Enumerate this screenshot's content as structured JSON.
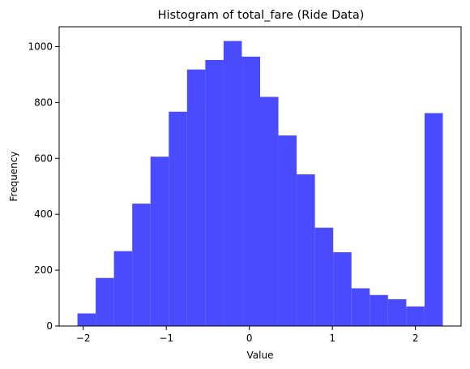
{
  "chart_data": {
    "type": "bar",
    "title": "Histogram of total_fare (Ride Data)",
    "xlabel": "Value",
    "ylabel": "Frequency",
    "bar_color": "#4a4aff",
    "bins": [
      {
        "start": -2.07,
        "end": -1.85,
        "count": 45
      },
      {
        "start": -1.85,
        "end": -1.63,
        "count": 172
      },
      {
        "start": -1.63,
        "end": -1.41,
        "count": 268
      },
      {
        "start": -1.41,
        "end": -1.19,
        "count": 438
      },
      {
        "start": -1.19,
        "end": -0.97,
        "count": 606
      },
      {
        "start": -0.97,
        "end": -0.75,
        "count": 767
      },
      {
        "start": -0.75,
        "end": -0.53,
        "count": 918
      },
      {
        "start": -0.53,
        "end": -0.31,
        "count": 952
      },
      {
        "start": -0.31,
        "end": -0.09,
        "count": 1020
      },
      {
        "start": -0.09,
        "end": 0.13,
        "count": 964
      },
      {
        "start": 0.13,
        "end": 0.35,
        "count": 820
      },
      {
        "start": 0.35,
        "end": 0.57,
        "count": 682
      },
      {
        "start": 0.57,
        "end": 0.79,
        "count": 543
      },
      {
        "start": 0.79,
        "end": 1.01,
        "count": 352
      },
      {
        "start": 1.01,
        "end": 1.23,
        "count": 264
      },
      {
        "start": 1.23,
        "end": 1.45,
        "count": 135
      },
      {
        "start": 1.45,
        "end": 1.67,
        "count": 111
      },
      {
        "start": 1.67,
        "end": 1.89,
        "count": 96
      },
      {
        "start": 1.89,
        "end": 2.11,
        "count": 70
      },
      {
        "start": 2.11,
        "end": 2.33,
        "count": 762
      }
    ],
    "xlim": [
      -2.29,
      2.55
    ],
    "ylim": [
      0,
      1071
    ],
    "xticks": [
      {
        "value": -2,
        "label": "−2"
      },
      {
        "value": -1,
        "label": "−1"
      },
      {
        "value": 0,
        "label": "0"
      },
      {
        "value": 1,
        "label": "1"
      },
      {
        "value": 2,
        "label": "2"
      }
    ],
    "yticks": [
      {
        "value": 0,
        "label": "0"
      },
      {
        "value": 200,
        "label": "200"
      },
      {
        "value": 400,
        "label": "400"
      },
      {
        "value": 600,
        "label": "600"
      },
      {
        "value": 800,
        "label": "800"
      },
      {
        "value": 1000,
        "label": "1000"
      }
    ],
    "grid": false
  }
}
